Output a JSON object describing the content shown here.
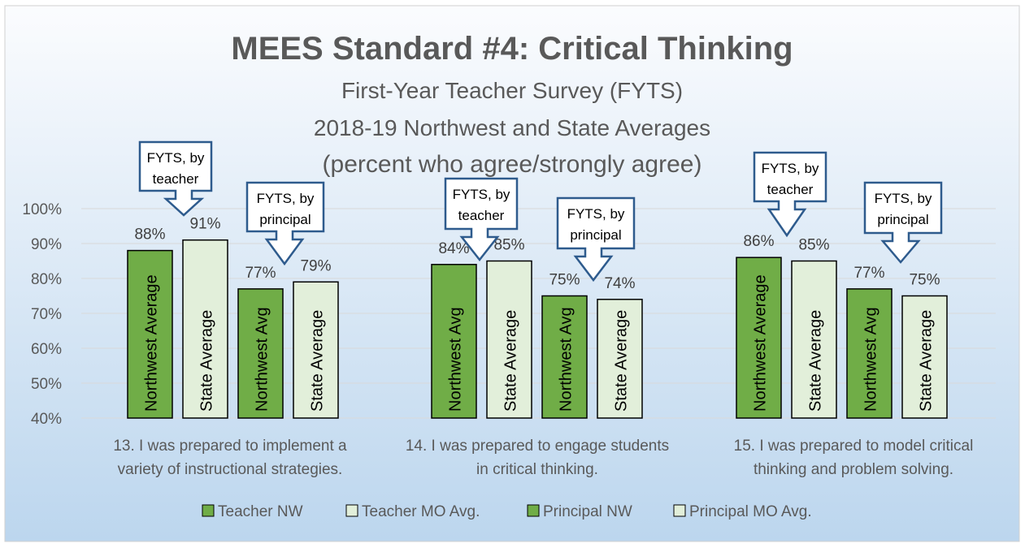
{
  "chart_data": {
    "type": "bar",
    "title": "MEES Standard #4: Critical Thinking",
    "subtitle_lines": [
      "First-Year Teacher Survey (FYTS)",
      "2018-19 Northwest and State Averages",
      "(percent who agree/strongly agree)"
    ],
    "categories": [
      [
        "13. I was prepared to implement a",
        "variety of instructional strategies."
      ],
      [
        "14. I was prepared to engage students",
        "in critical thinking."
      ],
      [
        "15. I was prepared to model critical",
        "thinking and problem solving."
      ]
    ],
    "series": [
      {
        "name": "Teacher NW",
        "values": [
          88,
          84,
          86
        ],
        "bar_label": "Northwest Average",
        "bar_labels": [
          "Northwest Average",
          "Northwest Avg",
          "Northwest Average"
        ],
        "color": "#70ad47"
      },
      {
        "name": "Teacher MO Avg.",
        "values": [
          91,
          85,
          85
        ],
        "bar_label": "State Average",
        "bar_labels": [
          "State Average",
          "State Average",
          "State Average"
        ],
        "color": "#e2efda"
      },
      {
        "name": "Principal NW",
        "values": [
          77,
          75,
          77
        ],
        "bar_label": "Northwest Avg",
        "bar_labels": [
          "Northwest Avg",
          "Northwest Avg",
          "Northwest Avg"
        ],
        "color": "#70ad47"
      },
      {
        "name": "Principal MO Avg.",
        "values": [
          79,
          74,
          75
        ],
        "bar_label": "State Average",
        "bar_labels": [
          "State Average",
          "State Average",
          "State Average"
        ],
        "color": "#e2efda"
      }
    ],
    "value_labels": [
      [
        "88%",
        "91%",
        "77%",
        "79%"
      ],
      [
        "84%",
        "85%",
        "75%",
        "74%"
      ],
      [
        "86%",
        "85%",
        "77%",
        "75%"
      ]
    ],
    "y_ticks": [
      "40%",
      "50%",
      "60%",
      "70%",
      "80%",
      "90%",
      "100%"
    ],
    "ylim": [
      40,
      100
    ],
    "grid": true,
    "legend_position": "bottom",
    "callouts": [
      {
        "lines": [
          "FYTS, by",
          "teacher"
        ],
        "group": 0
      },
      {
        "lines": [
          "FYTS, by",
          "principal"
        ],
        "group": 0
      },
      {
        "lines": [
          "FYTS, by",
          "teacher"
        ],
        "group": 1
      },
      {
        "lines": [
          "FYTS, by",
          "principal"
        ],
        "group": 1
      },
      {
        "lines": [
          "FYTS, by",
          "teacher"
        ],
        "group": 2
      },
      {
        "lines": [
          "FYTS, by",
          "principal"
        ],
        "group": 2
      }
    ],
    "colors": {
      "background_top": "#fbfcfe",
      "background_bottom": "#bcd6ee",
      "callout_border": "#2e5b8d",
      "grid": "#d9d9d9",
      "title": "#595959"
    }
  }
}
